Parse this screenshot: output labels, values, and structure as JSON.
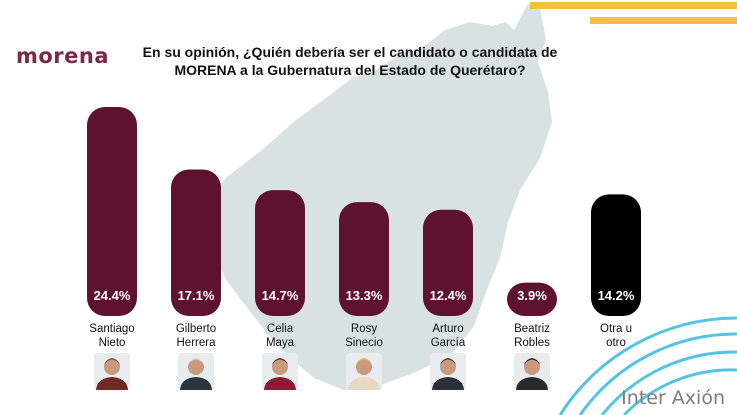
{
  "brand": {
    "logo": "morena",
    "footer": "Inter Axión"
  },
  "colors": {
    "bar": "#5f1230",
    "other_bar": "#000000",
    "logo": "#7b2a44",
    "stripe": "#f6bf43",
    "map": "#d8e2e2",
    "arc": "#55c4e4"
  },
  "chart_data": {
    "type": "bar",
    "title_lines": [
      "En su opinión, ¿Quién debería ser el candidato o candidata de",
      "MORENA a la Gubernatura del Estado de Querétaro?"
    ],
    "categories": [
      [
        "Santiago",
        "Nieto"
      ],
      [
        "Gilberto",
        "Herrera"
      ],
      [
        "Celia",
        "Maya"
      ],
      [
        "Rosy",
        "Sinecio"
      ],
      [
        "Arturo",
        "García"
      ],
      [
        "Beatriz",
        "Robles"
      ],
      [
        "Otra u",
        "otro"
      ]
    ],
    "values": [
      24.4,
      17.1,
      14.7,
      13.3,
      12.4,
      3.9,
      14.2
    ],
    "value_labels": [
      "24.4%",
      "17.1%",
      "14.7%",
      "13.3%",
      "12.4%",
      "3.9%",
      "14.2%"
    ],
    "ylim": [
      0,
      24.4
    ],
    "grid": false,
    "legend": "none",
    "candidate_photos": [
      true,
      true,
      true,
      true,
      true,
      true,
      false
    ]
  }
}
